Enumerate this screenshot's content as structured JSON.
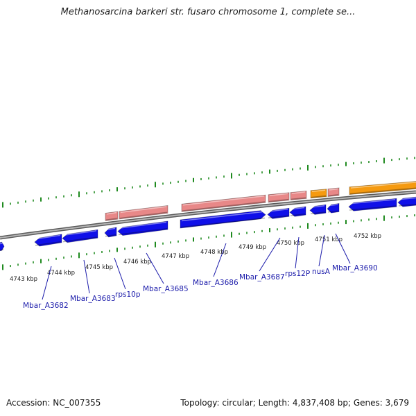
{
  "title": "Methanosarcina barkeri str. fusaro chromosome 1, complete se...",
  "footer": {
    "accession": "Accession: NC_007355",
    "summary": "Topology: circular; Length: 4,837,408 bp; Genes: 3,679"
  },
  "colors": {
    "backbone": "#8a8a8a",
    "tick": "#1f8a1f",
    "gene_blue": "#1010e8",
    "gene_pink": "#e88888",
    "gene_orange": "#f59a10",
    "label": "#1a1aaa"
  },
  "scale_labels": [
    "4743 kbp",
    "4744 kbp",
    "4745 kbp",
    "4746 kbp",
    "4747 kbp",
    "4748 kbp",
    "4749 kbp",
    "4750 kbp",
    "4751 kbp",
    "4752 kbp"
  ],
  "gene_labels": [
    "Mbar_A3682",
    "Mbar_A3683",
    "rps10p",
    "Mbar_A3685",
    "Mbar_A3686",
    "Mbar_A3687",
    "rps12P",
    "nusA",
    "Mbar_A3690"
  ]
}
